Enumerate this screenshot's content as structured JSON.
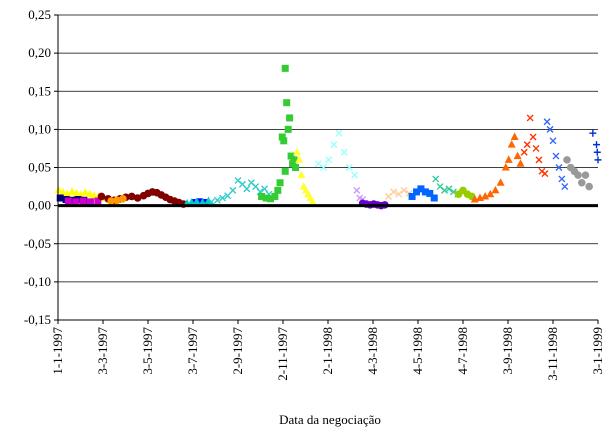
{
  "chart_data": {
    "type": "scatter",
    "title": "",
    "xlabel": "Data da negociação",
    "ylabel": "",
    "xlim": [
      "1997-01-01",
      "1999-01-03"
    ],
    "ylim": [
      -0.15,
      0.25
    ],
    "y_ticks": [
      -0.15,
      -0.1,
      -0.05,
      0.0,
      0.05,
      0.1,
      0.15,
      0.2,
      0.25
    ],
    "y_tick_labels": [
      "-0,15",
      "-0,10",
      "-0,05",
      "0,00",
      "0,05",
      "0,10",
      "0,15",
      "0,20",
      "0,25"
    ],
    "x_ticks": [
      "1997-01-01",
      "1997-03-03",
      "1997-05-03",
      "1997-07-03",
      "1997-09-02",
      "1997-11-02",
      "1998-01-02",
      "1998-03-04",
      "1998-05-04",
      "1998-07-04",
      "1998-09-03",
      "1998-11-03",
      "1999-01-03"
    ],
    "x_tick_labels": [
      "1-1-1997",
      "3-3-1997",
      "3-5-1997",
      "3-7-1997",
      "2-9-1997",
      "2-11-1997",
      "2-1-1998",
      "4-3-1998",
      "4-5-1998",
      "4-7-1998",
      "3-9-1998",
      "3-11-1998",
      "3-1-1999"
    ],
    "grid": "horizontal",
    "legend": "none",
    "series": [
      {
        "color": "#ffff00",
        "marker": "triangle",
        "points": [
          [
            "1997-01-02",
            0.02
          ],
          [
            "1997-01-08",
            0.017
          ],
          [
            "1997-01-14",
            0.015
          ],
          [
            "1997-01-20",
            0.018
          ],
          [
            "1997-01-26",
            0.016
          ],
          [
            "1997-02-01",
            0.014
          ],
          [
            "1997-02-07",
            0.017
          ],
          [
            "1997-02-13",
            0.015
          ],
          [
            "1997-02-19",
            0.013
          ],
          [
            "1997-02-25",
            0.012
          ],
          [
            "1997-03-03",
            0.01
          ]
        ]
      },
      {
        "color": "#000080",
        "marker": "square",
        "points": [
          [
            "1997-01-04",
            0.01
          ],
          [
            "1997-01-12",
            0.008
          ],
          [
            "1997-01-20",
            0.007
          ],
          [
            "1997-01-28",
            0.008
          ],
          [
            "1997-02-05",
            0.007
          ]
        ]
      },
      {
        "color": "#cc00cc",
        "marker": "square",
        "points": [
          [
            "1997-01-15",
            0.006
          ],
          [
            "1997-01-25",
            0.005
          ],
          [
            "1997-02-04",
            0.006
          ],
          [
            "1997-02-14",
            0.005
          ],
          [
            "1997-02-24",
            0.006
          ]
        ]
      },
      {
        "color": "#800000",
        "marker": "circle",
        "points": [
          [
            "1997-03-01",
            0.012
          ],
          [
            "1997-03-10",
            0.009
          ],
          [
            "1997-03-18",
            0.007
          ],
          [
            "1997-03-26",
            0.009
          ],
          [
            "1997-04-03",
            0.011
          ],
          [
            "1997-04-11",
            0.012
          ],
          [
            "1997-04-19",
            0.01
          ],
          [
            "1997-04-27",
            0.013
          ],
          [
            "1997-05-03",
            0.016
          ],
          [
            "1997-05-09",
            0.018
          ],
          [
            "1997-05-15",
            0.017
          ],
          [
            "1997-05-21",
            0.014
          ],
          [
            "1997-05-27",
            0.011
          ],
          [
            "1997-06-02",
            0.008
          ],
          [
            "1997-06-08",
            0.006
          ],
          [
            "1997-06-14",
            0.004
          ],
          [
            "1997-06-20",
            0.002
          ]
        ]
      },
      {
        "color": "#ff9900",
        "marker": "circle",
        "points": [
          [
            "1997-03-14",
            0.006
          ],
          [
            "1997-03-22",
            0.007
          ],
          [
            "1997-03-30",
            0.009
          ]
        ]
      },
      {
        "color": "#0000ff",
        "marker": "square",
        "points": [
          [
            "1997-07-05",
            0.004
          ],
          [
            "1997-07-12",
            0.005
          ],
          [
            "1997-07-20",
            0.004
          ]
        ]
      },
      {
        "color": "#00cccc",
        "marker": "triangle",
        "points": [
          [
            "1997-06-25",
            0.003
          ],
          [
            "1997-07-01",
            0.004
          ],
          [
            "1997-07-08",
            0.005
          ],
          [
            "1997-07-16",
            0.004
          ],
          [
            "1997-07-24",
            0.006
          ]
        ]
      },
      {
        "color": "#33cccc",
        "marker": "cross",
        "points": [
          [
            "1997-07-28",
            0.005
          ],
          [
            "1997-08-05",
            0.007
          ],
          [
            "1997-08-12",
            0.01
          ],
          [
            "1997-08-19",
            0.013
          ],
          [
            "1997-08-26",
            0.02
          ],
          [
            "1997-09-02",
            0.033
          ],
          [
            "1997-09-08",
            0.028
          ],
          [
            "1997-09-14",
            0.022
          ],
          [
            "1997-09-20",
            0.03
          ],
          [
            "1997-09-26",
            0.025
          ],
          [
            "1997-10-02",
            0.018
          ],
          [
            "1997-10-08",
            0.022
          ],
          [
            "1997-10-14",
            0.015
          ]
        ]
      },
      {
        "color": "#33cc33",
        "marker": "square",
        "points": [
          [
            "1997-10-04",
            0.012
          ],
          [
            "1997-10-10",
            0.01
          ],
          [
            "1997-10-16",
            0.009
          ],
          [
            "1997-10-22",
            0.012
          ],
          [
            "1997-10-26",
            0.02
          ],
          [
            "1997-10-29",
            0.03
          ],
          [
            "1997-11-01",
            0.09
          ],
          [
            "1997-11-03",
            0.085
          ],
          [
            "1997-11-05",
            0.18
          ],
          [
            "1997-11-07",
            0.135
          ],
          [
            "1997-11-09",
            0.1
          ],
          [
            "1997-11-11",
            0.115
          ],
          [
            "1997-11-13",
            0.065
          ],
          [
            "1997-11-15",
            0.055
          ],
          [
            "1997-11-17",
            0.06
          ],
          [
            "1997-11-19",
            0.05
          ],
          [
            "1997-11-05",
            0.045
          ]
        ]
      },
      {
        "color": "#ffff33",
        "marker": "triangle",
        "points": [
          [
            "1997-11-21",
            0.07
          ],
          [
            "1997-11-24",
            0.06
          ],
          [
            "1997-11-27",
            0.04
          ],
          [
            "1997-11-30",
            0.025
          ],
          [
            "1997-12-03",
            0.02
          ],
          [
            "1997-12-06",
            0.015
          ],
          [
            "1997-12-09",
            0.01
          ],
          [
            "1997-12-12",
            0.005
          ]
        ]
      },
      {
        "color": "#99ffff",
        "marker": "cross",
        "points": [
          [
            "1997-12-20",
            0.055
          ],
          [
            "1997-12-27",
            0.05
          ],
          [
            "1998-01-03",
            0.06
          ],
          [
            "1998-01-10",
            0.08
          ],
          [
            "1998-01-17",
            0.095
          ],
          [
            "1998-01-24",
            0.07
          ],
          [
            "1998-01-31",
            0.05
          ],
          [
            "1998-02-07",
            0.04
          ]
        ]
      },
      {
        "color": "#cc99ff",
        "marker": "cross",
        "points": [
          [
            "1998-02-10",
            0.02
          ],
          [
            "1998-02-14",
            0.01
          ],
          [
            "1998-02-18",
            0.008
          ]
        ]
      },
      {
        "color": "#6600cc",
        "marker": "circle",
        "points": [
          [
            "1998-02-18",
            0.003
          ],
          [
            "1998-02-23",
            0.002
          ],
          [
            "1998-02-28",
            0.001
          ],
          [
            "1998-03-05",
            0.002
          ],
          [
            "1998-03-10",
            0.001
          ],
          [
            "1998-03-15",
            0.0
          ],
          [
            "1998-03-20",
            0.001
          ]
        ]
      },
      {
        "color": "#ffcc99",
        "marker": "cross",
        "points": [
          [
            "1998-03-25",
            0.012
          ],
          [
            "1998-04-01",
            0.018
          ],
          [
            "1998-04-08",
            0.015
          ],
          [
            "1998-04-15",
            0.02
          ],
          [
            "1998-04-22",
            0.016
          ]
        ]
      },
      {
        "color": "#0066ff",
        "marker": "square",
        "points": [
          [
            "1998-04-26",
            0.012
          ],
          [
            "1998-05-02",
            0.018
          ],
          [
            "1998-05-08",
            0.022
          ],
          [
            "1998-05-14",
            0.018
          ],
          [
            "1998-05-20",
            0.016
          ],
          [
            "1998-05-26",
            0.01
          ]
        ]
      },
      {
        "color": "#33cc99",
        "marker": "cross",
        "points": [
          [
            "1998-05-28",
            0.035
          ],
          [
            "1998-06-03",
            0.025
          ],
          [
            "1998-06-09",
            0.02
          ],
          [
            "1998-06-15",
            0.022
          ],
          [
            "1998-06-21",
            0.018
          ],
          [
            "1998-06-27",
            0.015
          ]
        ]
      },
      {
        "color": "#99cc00",
        "marker": "circle",
        "points": [
          [
            "1998-06-28",
            0.015
          ],
          [
            "1998-07-04",
            0.02
          ],
          [
            "1998-07-10",
            0.015
          ],
          [
            "1998-07-16",
            0.012
          ]
        ]
      },
      {
        "color": "#ff6600",
        "marker": "triangle",
        "points": [
          [
            "1998-07-20",
            0.008
          ],
          [
            "1998-07-27",
            0.01
          ],
          [
            "1998-08-03",
            0.012
          ],
          [
            "1998-08-10",
            0.015
          ],
          [
            "1998-08-17",
            0.02
          ],
          [
            "1998-08-24",
            0.03
          ],
          [
            "1998-08-31",
            0.05
          ],
          [
            "1998-09-04",
            0.06
          ],
          [
            "1998-09-08",
            0.08
          ],
          [
            "1998-09-12",
            0.09
          ],
          [
            "1998-09-16",
            0.065
          ],
          [
            "1998-09-20",
            0.055
          ]
        ]
      },
      {
        "color": "#ff3300",
        "marker": "cross",
        "points": [
          [
            "1998-09-25",
            0.07
          ],
          [
            "1998-09-29",
            0.08
          ],
          [
            "1998-10-03",
            0.115
          ],
          [
            "1998-10-07",
            0.09
          ],
          [
            "1998-10-11",
            0.075
          ],
          [
            "1998-10-15",
            0.06
          ],
          [
            "1998-10-19",
            0.045
          ],
          [
            "1998-10-23",
            0.042
          ]
        ]
      },
      {
        "color": "#3366ff",
        "marker": "cross",
        "points": [
          [
            "1998-10-26",
            0.11
          ],
          [
            "1998-10-30",
            0.1
          ],
          [
            "1998-11-03",
            0.085
          ],
          [
            "1998-11-07",
            0.065
          ],
          [
            "1998-11-11",
            0.05
          ],
          [
            "1998-11-15",
            0.035
          ],
          [
            "1998-11-19",
            0.025
          ]
        ]
      },
      {
        "color": "#999999",
        "marker": "circle",
        "points": [
          [
            "1998-11-22",
            0.06
          ],
          [
            "1998-11-27",
            0.05
          ],
          [
            "1998-12-02",
            0.045
          ],
          [
            "1998-12-07",
            0.04
          ],
          [
            "1998-12-12",
            0.03
          ],
          [
            "1998-12-17",
            0.04
          ],
          [
            "1998-12-22",
            0.025
          ]
        ]
      },
      {
        "color": "#0033cc",
        "marker": "plus",
        "points": [
          [
            "1998-12-27",
            0.095
          ],
          [
            "1999-01-01",
            0.08
          ],
          [
            "1999-01-02",
            0.07
          ],
          [
            "1999-01-03",
            0.06
          ]
        ]
      }
    ]
  }
}
